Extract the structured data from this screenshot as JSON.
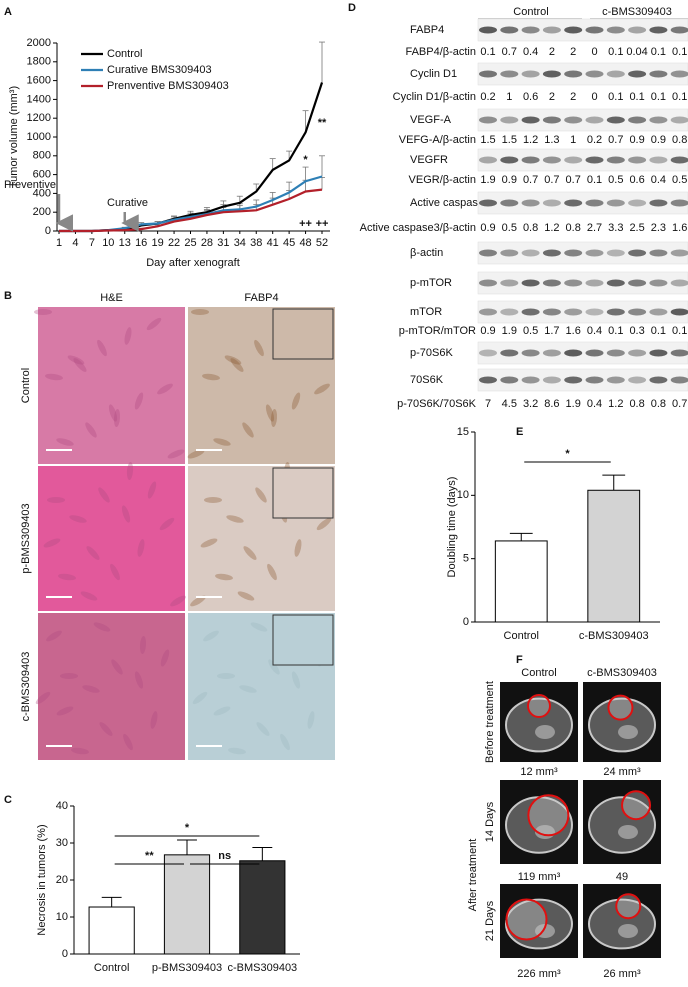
{
  "chart_data": [
    {
      "panel": "A",
      "type": "line",
      "x_label": "Day after xenograft",
      "y_label": "Tumor volume (mm³)",
      "categories": [
        1,
        4,
        7,
        10,
        13,
        16,
        19,
        22,
        25,
        28,
        31,
        34,
        38,
        41,
        45,
        48,
        52
      ],
      "ylim": [
        0,
        2000
      ],
      "yticks": [
        0,
        200,
        400,
        600,
        800,
        1000,
        1200,
        1400,
        1600,
        1800,
        2000
      ],
      "legend": "upper left",
      "series": [
        {
          "name": "Control",
          "color": "#000000",
          "values": [
            0,
            0,
            0,
            10,
            10,
            60,
            80,
            130,
            170,
            200,
            260,
            300,
            420,
            650,
            750,
            1050,
            1580
          ],
          "errors": [
            0,
            0,
            0,
            5,
            10,
            15,
            20,
            30,
            40,
            50,
            60,
            70,
            80,
            120,
            100,
            230,
            430
          ]
        },
        {
          "name": "Curative BMS309403",
          "color": "#2e7fb5",
          "values": [
            0,
            0,
            0,
            10,
            30,
            70,
            80,
            120,
            150,
            180,
            220,
            230,
            260,
            330,
            410,
            530,
            580
          ],
          "errors": [
            0,
            0,
            0,
            5,
            10,
            20,
            20,
            30,
            40,
            50,
            60,
            60,
            70,
            80,
            110,
            150,
            220
          ]
        },
        {
          "name": "Prenventive BMS309403",
          "color": "#b3202a",
          "values": [
            0,
            0,
            0,
            5,
            10,
            20,
            50,
            100,
            130,
            170,
            200,
            210,
            220,
            280,
            340,
            420,
            440
          ],
          "errors": [
            0,
            0,
            0,
            3,
            5,
            10,
            15,
            30,
            40,
            50,
            50,
            60,
            60,
            70,
            90,
            120,
            130
          ]
        }
      ],
      "arrows": [
        "Preventive",
        "Curative"
      ],
      "significance": [
        "*",
        "**",
        "++",
        "++"
      ]
    },
    {
      "panel": "C",
      "type": "bar",
      "y_label": "Necrosis in tumors (%)",
      "categories": [
        "Control",
        "p-BMS309403",
        "c-BMS309403"
      ],
      "values": [
        12.7,
        26.8,
        25.2
      ],
      "errors": [
        2.6,
        4,
        3.6
      ],
      "colors": [
        "#ffffff",
        "#d3d3d3",
        "#333333"
      ],
      "ylim": [
        0,
        40
      ],
      "yticks": [
        0,
        10,
        20,
        30,
        40
      ],
      "significance": [
        "*",
        "**",
        "ns"
      ]
    },
    {
      "panel": "E",
      "type": "bar",
      "y_label": "Doubling time (days)",
      "categories": [
        "Control",
        "c-BMS309403"
      ],
      "values": [
        6.4,
        10.4
      ],
      "errors": [
        0.6,
        1.2
      ],
      "colors": [
        "#ffffff",
        "#d3d3d3"
      ],
      "ylim": [
        0,
        15
      ],
      "yticks": [
        0,
        5,
        10,
        15
      ],
      "significance": [
        "*"
      ]
    }
  ],
  "histology": {
    "panel": "B",
    "columns": [
      "H&E",
      "FABP4"
    ],
    "rows": [
      "Control",
      "p-BMS309403",
      "c-BMS309403"
    ]
  },
  "western_blot": {
    "panel": "D",
    "groups": [
      "Control",
      "c-BMS309403"
    ],
    "rows": [
      {
        "label": "FABP4"
      },
      {
        "label": "FABP4/β-actin",
        "values": [
          0.1,
          0.7,
          0.4,
          2,
          2,
          0,
          0.1,
          0.04,
          0.1,
          0.1
        ]
      },
      {
        "label": "Cyclin D1"
      },
      {
        "label": "Cyclin D1/β-actin",
        "values": [
          0.2,
          1,
          0.6,
          2,
          2,
          0,
          0.1,
          0.1,
          0.1,
          0.1
        ]
      },
      {
        "label": "VEGF-A"
      },
      {
        "label": "VEFG-A/β-actin",
        "values": [
          1.5,
          1.5,
          1.2,
          1.3,
          1,
          0.2,
          0.7,
          0.9,
          0.9,
          0.8
        ]
      },
      {
        "label": "VEGFR"
      },
      {
        "label": "VEGR/β-actin",
        "values": [
          1.9,
          0.9,
          0.7,
          0.7,
          0.7,
          0.1,
          0.5,
          0.6,
          0.4,
          0.5
        ]
      },
      {
        "label": "Active caspase3"
      },
      {
        "label": "Active caspase3/β-actin",
        "values": [
          0.9,
          0.5,
          0.8,
          1.2,
          0.8,
          2.7,
          3.3,
          2.5,
          2.3,
          1.6
        ]
      },
      {
        "label": "β-actin"
      },
      {
        "label": "p-mTOR"
      },
      {
        "label": "mTOR"
      },
      {
        "label": "p-mTOR/mTOR",
        "values": [
          0.9,
          1.9,
          0.5,
          1.7,
          1.6,
          0.4,
          0.1,
          0.3,
          0.1,
          0.1
        ]
      },
      {
        "label": "p-70S6K"
      },
      {
        "label": "70S6K"
      },
      {
        "label": "p-70S6K/70S6K",
        "values": [
          7,
          4.5,
          3.2,
          8.6,
          1.9,
          0.4,
          1.2,
          0.8,
          0.8,
          0.7
        ]
      }
    ]
  },
  "mri": {
    "panel": "F",
    "columns": [
      "Control",
      "c-BMS309403"
    ],
    "group_label": "After treatment",
    "rows": [
      {
        "label": "Before treatment",
        "volumes": [
          "12 mm³",
          "24 mm³"
        ]
      },
      {
        "label": "14 Days",
        "volumes": [
          "119 mm³",
          "49"
        ]
      },
      {
        "label": "21 Days",
        "volumes": [
          "226 mm³",
          "26 mm³"
        ]
      }
    ]
  }
}
